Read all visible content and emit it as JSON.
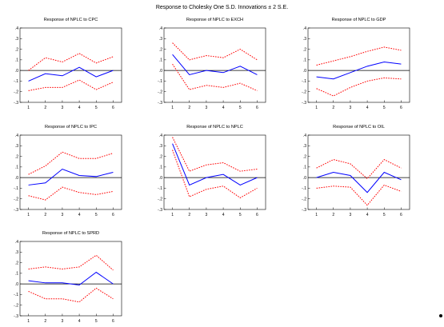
{
  "main_title": "Response to Cholesky One S.D. Innovations ± 2 S.E.",
  "colors": {
    "response": "#0000ff",
    "band": "#ff0000",
    "axis": "#000000",
    "zero_line": "#000000"
  },
  "chart_data": [
    {
      "type": "line",
      "title": "Response of NPLC to CPC",
      "x": [
        1,
        2,
        3,
        4,
        5,
        6
      ],
      "ylim": [
        -0.3,
        0.4
      ],
      "yticks": [
        ".4",
        ".3",
        ".2",
        ".1",
        ".0",
        "-.1",
        "-.2",
        "-.3"
      ],
      "series": [
        {
          "role": "response",
          "values": [
            -0.1,
            -0.03,
            -0.05,
            0.03,
            -0.06,
            0.0
          ]
        },
        {
          "role": "upper",
          "values": [
            0.0,
            0.12,
            0.08,
            0.16,
            0.07,
            0.13
          ]
        },
        {
          "role": "lower",
          "values": [
            -0.19,
            -0.16,
            -0.16,
            -0.09,
            -0.18,
            -0.11
          ]
        }
      ]
    },
    {
      "type": "line",
      "title": "Response of NPLC to EXCH",
      "x": [
        1,
        2,
        3,
        4,
        5,
        6
      ],
      "ylim": [
        -0.3,
        0.4
      ],
      "yticks": [
        ".4",
        ".3",
        ".2",
        ".1",
        ".0",
        "-.1",
        "-.2",
        "-.3"
      ],
      "series": [
        {
          "role": "response",
          "values": [
            0.15,
            -0.04,
            0.0,
            -0.02,
            0.04,
            -0.04
          ]
        },
        {
          "role": "upper",
          "values": [
            0.26,
            0.1,
            0.14,
            0.12,
            0.2,
            0.1
          ]
        },
        {
          "role": "lower",
          "values": [
            0.06,
            -0.18,
            -0.14,
            -0.16,
            -0.12,
            -0.19
          ]
        }
      ]
    },
    {
      "type": "line",
      "title": "Response of NPLC to GDP",
      "x": [
        1,
        2,
        3,
        4,
        5,
        6
      ],
      "ylim": [
        -0.3,
        0.4
      ],
      "yticks": [
        ".4",
        ".3",
        ".2",
        ".1",
        ".0",
        "-.1",
        "-.2",
        "-.3"
      ],
      "series": [
        {
          "role": "response",
          "values": [
            -0.06,
            -0.08,
            -0.02,
            0.04,
            0.08,
            0.06
          ]
        },
        {
          "role": "upper",
          "values": [
            0.05,
            0.09,
            0.13,
            0.18,
            0.22,
            0.19
          ]
        },
        {
          "role": "lower",
          "values": [
            -0.17,
            -0.24,
            -0.16,
            -0.1,
            -0.07,
            -0.08
          ]
        }
      ]
    },
    {
      "type": "line",
      "title": "Response of NPLC to IPC",
      "x": [
        1,
        2,
        3,
        4,
        5,
        6
      ],
      "ylim": [
        -0.3,
        0.4
      ],
      "yticks": [
        ".4",
        ".3",
        ".2",
        ".1",
        ".0",
        "-.1",
        "-.2",
        "-.3"
      ],
      "series": [
        {
          "role": "response",
          "values": [
            -0.07,
            -0.05,
            0.08,
            0.02,
            0.01,
            0.05
          ]
        },
        {
          "role": "upper",
          "values": [
            0.03,
            0.11,
            0.24,
            0.18,
            0.18,
            0.23
          ]
        },
        {
          "role": "lower",
          "values": [
            -0.17,
            -0.21,
            -0.09,
            -0.14,
            -0.16,
            -0.13
          ]
        }
      ]
    },
    {
      "type": "line",
      "title": "Response of NPLC to NPLC",
      "x": [
        1,
        2,
        3,
        4,
        5,
        6
      ],
      "ylim": [
        -0.3,
        0.4
      ],
      "yticks": [
        ".4",
        ".3",
        ".2",
        ".1",
        ".0",
        "-.1",
        "-.2",
        "-.3"
      ],
      "series": [
        {
          "role": "response",
          "values": [
            0.32,
            -0.07,
            0.0,
            0.03,
            -0.07,
            0.0
          ]
        },
        {
          "role": "upper",
          "values": [
            0.38,
            0.06,
            0.12,
            0.14,
            0.06,
            0.08
          ]
        },
        {
          "role": "lower",
          "values": [
            0.26,
            -0.18,
            -0.11,
            -0.08,
            -0.19,
            -0.1
          ]
        }
      ]
    },
    {
      "type": "line",
      "title": "Response of NPLC to OIL",
      "x": [
        1,
        2,
        3,
        4,
        5,
        6
      ],
      "ylim": [
        -0.3,
        0.4
      ],
      "yticks": [
        ".4",
        ".3",
        ".2",
        ".1",
        ".0",
        "-.1",
        "-.2",
        "-.3"
      ],
      "series": [
        {
          "role": "response",
          "values": [
            0.0,
            0.05,
            0.02,
            -0.14,
            0.05,
            -0.02
          ]
        },
        {
          "role": "upper",
          "values": [
            0.09,
            0.17,
            0.13,
            -0.01,
            0.17,
            0.09
          ]
        },
        {
          "role": "lower",
          "values": [
            -0.1,
            -0.08,
            -0.09,
            -0.26,
            -0.07,
            -0.13
          ]
        }
      ]
    },
    {
      "type": "line",
      "title": "Response of NPLC to SPRD",
      "x": [
        1,
        2,
        3,
        4,
        5,
        6
      ],
      "ylim": [
        -0.3,
        0.4
      ],
      "yticks": [
        ".4",
        ".3",
        ".2",
        ".1",
        ".0",
        "-.1",
        "-.2",
        "-.3"
      ],
      "series": [
        {
          "role": "response",
          "values": [
            0.03,
            0.01,
            0.01,
            -0.01,
            0.11,
            0.0
          ]
        },
        {
          "role": "upper",
          "values": [
            0.14,
            0.16,
            0.14,
            0.16,
            0.27,
            0.13
          ]
        },
        {
          "role": "lower",
          "values": [
            -0.07,
            -0.14,
            -0.14,
            -0.17,
            -0.04,
            -0.14
          ]
        }
      ]
    }
  ]
}
